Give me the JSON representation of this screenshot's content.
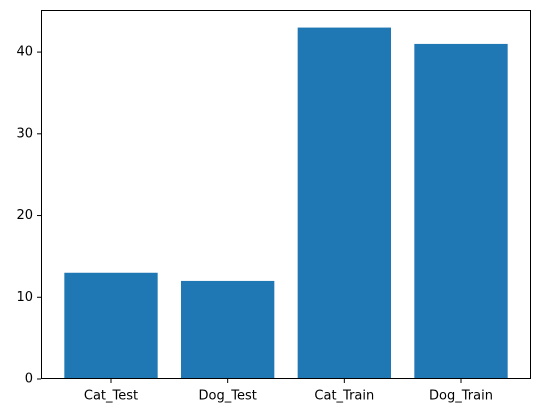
{
  "chart_data": {
    "type": "bar",
    "categories": [
      "Cat_Test",
      "Dog_Test",
      "Cat_Train",
      "Dog_Train"
    ],
    "values": [
      13,
      12,
      43,
      41
    ],
    "title": "",
    "xlabel": "",
    "ylabel": "",
    "ylim": [
      0,
      45.15
    ],
    "yticks": [
      0,
      10,
      20,
      30,
      40
    ],
    "bar_color": "#1f77b4",
    "grid": false,
    "legend": null
  }
}
